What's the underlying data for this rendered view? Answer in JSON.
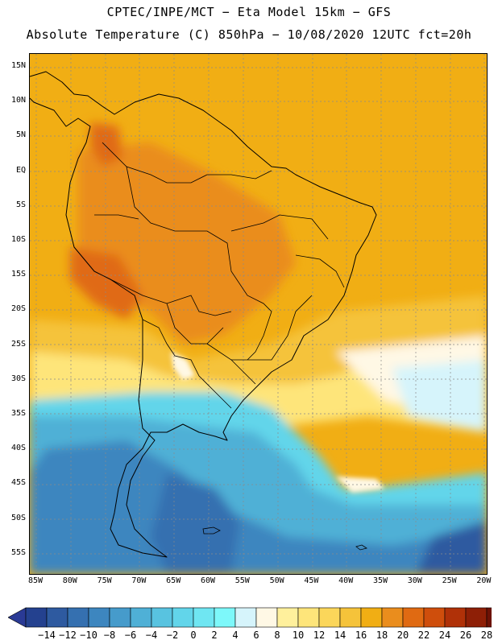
{
  "title_line1": "CPTEC/INPE/MCT −  Eta Model 15km − GFS",
  "title_line2": "Absolute Temperature (C) 850hPa − 10/08/2020 12UTC fct=20h",
  "lat_labels": [
    "15N",
    "10N",
    "5N",
    "EQ",
    "5S",
    "10S",
    "15S",
    "20S",
    "25S",
    "30S",
    "35S",
    "40S",
    "45S",
    "50S",
    "55S"
  ],
  "lon_labels": [
    "85W",
    "80W",
    "75W",
    "70W",
    "65W",
    "60W",
    "55W",
    "50W",
    "45W",
    "40W",
    "35W",
    "30W",
    "25W",
    "20W"
  ],
  "colorbar": {
    "ticks": [
      "−14",
      "−12",
      "−10",
      "−8",
      "−6",
      "−4",
      "−2",
      "0",
      "2",
      "4",
      "6",
      "8",
      "10",
      "12",
      "14",
      "16",
      "18",
      "20",
      "22",
      "24",
      "26",
      "28"
    ],
    "colors": [
      "#24418f",
      "#2e5aa0",
      "#3570b0",
      "#3d86bf",
      "#469bcb",
      "#4fb0d6",
      "#58c3e0",
      "#62d5ea",
      "#6fe6f2",
      "#7df8fa",
      "#d6f4fb",
      "#fff8e5",
      "#fff09c",
      "#fee57a",
      "#fbd65a",
      "#f5c33a",
      "#f1ae14",
      "#ea8d1d",
      "#e06a12",
      "#cf4e0c",
      "#b03108",
      "#8e1f06",
      "#6d1205"
    ],
    "under_color": "#2a3a95",
    "over_color": "#700c2c"
  }
}
